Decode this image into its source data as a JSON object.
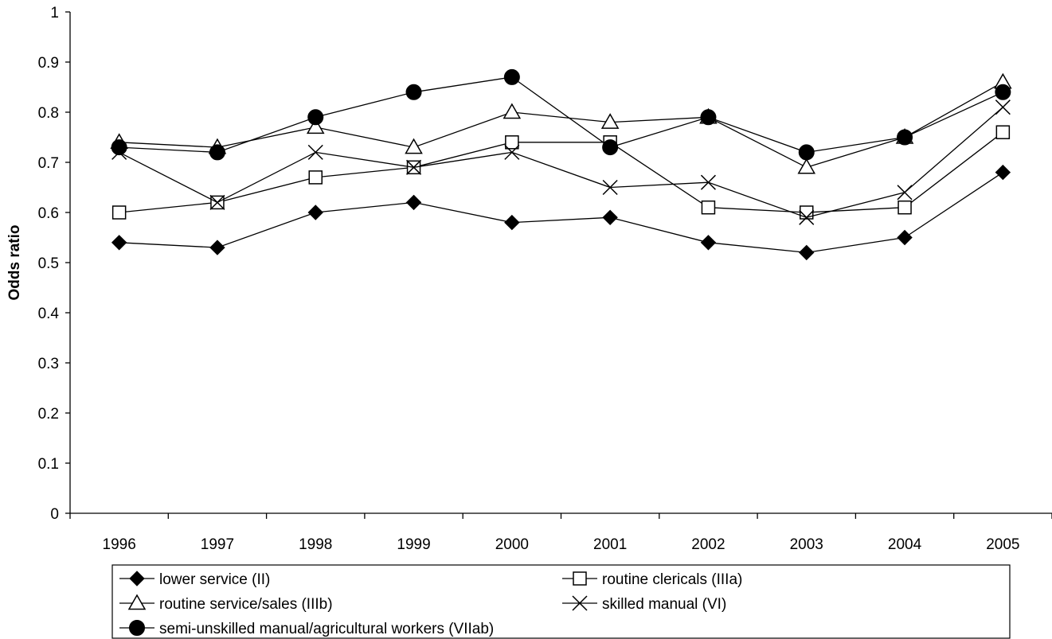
{
  "chart_data": {
    "type": "line",
    "title": "",
    "xlabel": "",
    "ylabel": "Odds ratio",
    "ylim": [
      0,
      1
    ],
    "yticks": [
      "0",
      "0.1",
      "0.2",
      "0.3",
      "0.4",
      "0.5",
      "0.6",
      "0.7",
      "0.8",
      "0.9",
      "1"
    ],
    "grid": false,
    "legend_position": "bottom",
    "categories": [
      "1996",
      "1997",
      "1998",
      "1999",
      "2000",
      "2001",
      "2002",
      "2003",
      "2004",
      "2005"
    ],
    "series": [
      {
        "name": "lower service (II)",
        "marker": "filled-diamond",
        "values": [
          0.54,
          0.53,
          0.6,
          0.62,
          0.58,
          0.59,
          0.54,
          0.52,
          0.55,
          0.68
        ]
      },
      {
        "name": "routine clericals (IIIa)",
        "marker": "open-square",
        "values": [
          0.6,
          0.62,
          0.67,
          0.69,
          0.74,
          0.74,
          0.61,
          0.6,
          0.61,
          0.76
        ]
      },
      {
        "name": "routine service/sales (IIIb)",
        "marker": "open-triangle",
        "values": [
          0.74,
          0.73,
          0.77,
          0.73,
          0.8,
          0.78,
          0.79,
          0.69,
          0.75,
          0.86
        ]
      },
      {
        "name": "skilled manual (VI)",
        "marker": "cross",
        "values": [
          0.72,
          0.62,
          0.72,
          0.69,
          0.72,
          0.65,
          0.66,
          0.59,
          0.64,
          0.81
        ]
      },
      {
        "name": "semi-unskilled manual/agricultural workers (VIIab)",
        "marker": "filled-circle",
        "values": [
          0.73,
          0.72,
          0.79,
          0.84,
          0.87,
          0.73,
          0.79,
          0.72,
          0.75,
          0.84
        ]
      }
    ],
    "colors": {
      "line": "#000000",
      "background": "#ffffff"
    }
  }
}
